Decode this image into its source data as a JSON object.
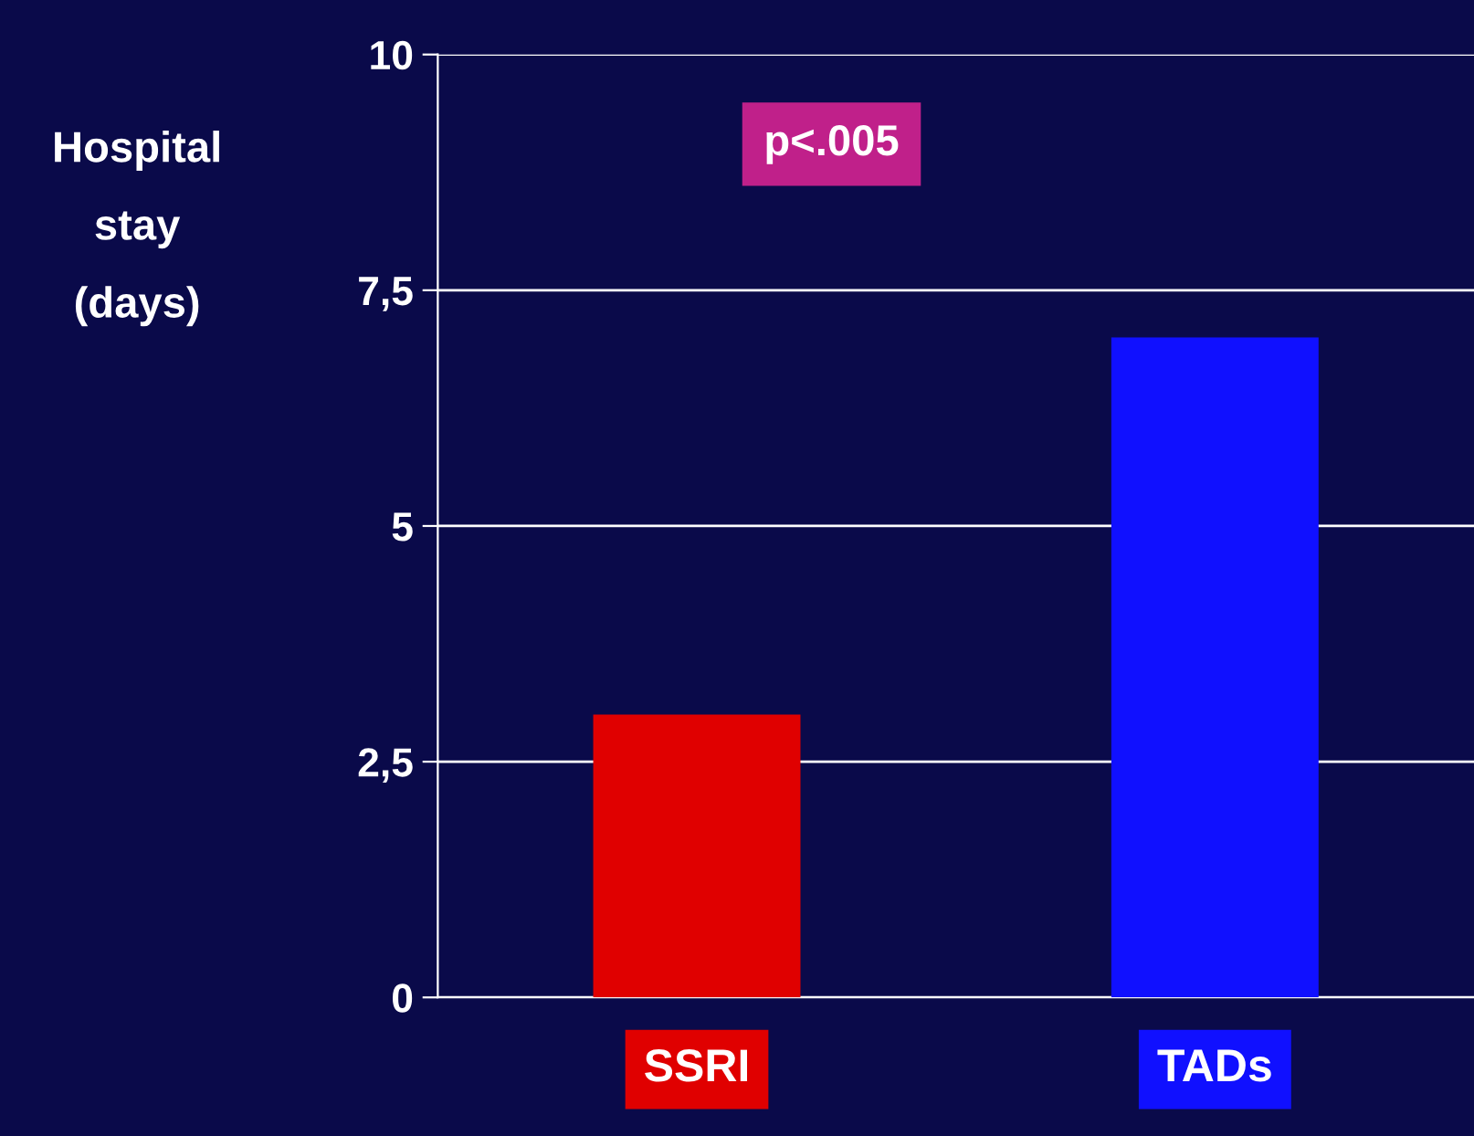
{
  "chart_data": {
    "type": "bar",
    "ylabel": "Hospital\nstay\n(days)",
    "categories": [
      "SSRI",
      "TADs"
    ],
    "values": [
      3,
      7
    ],
    "colors": [
      "#e00000",
      "#1010ff"
    ],
    "ylim": [
      0,
      10
    ],
    "yticks": [
      0,
      {
        "value": 2.5,
        "label": "2,5"
      },
      5,
      {
        "value": 7.5,
        "label": "7,5"
      },
      10
    ],
    "grid": "y",
    "annotations": [
      "p<.005"
    ]
  }
}
